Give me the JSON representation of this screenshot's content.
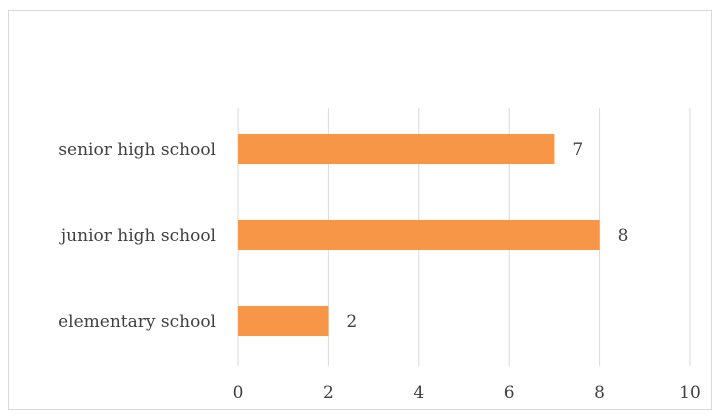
{
  "chart_data": {
    "type": "bar",
    "orientation": "horizontal",
    "categories": [
      "elementary school",
      "junior high school",
      "senior high school"
    ],
    "values": [
      2,
      8,
      7
    ],
    "xlim": [
      0,
      10
    ],
    "x_ticks": [
      0,
      2,
      4,
      6,
      8,
      10
    ],
    "grid": true,
    "data_labels": true,
    "bar_color": "#F79646",
    "gridline_color": "#D9D9D9"
  }
}
